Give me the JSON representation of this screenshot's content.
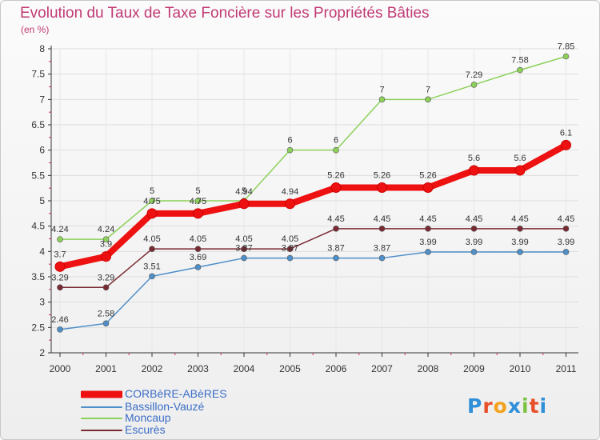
{
  "header": {
    "title": "Evolution du Taux de Taxe Foncière sur les Propriétés Bâties",
    "unit": "(en %)"
  },
  "logo": {
    "text": "Proxiti",
    "letter_colors": [
      "#2f8fd8",
      "#e8502a",
      "#f2a21c",
      "#2f8fd8",
      "#7cc242",
      "#e8502a",
      "#2f8fd8"
    ]
  },
  "chart_data": {
    "type": "line",
    "title": "Evolution du Taux de Taxe Foncière sur les Propriétés Bâties",
    "ylabel": "(en %)",
    "xlabel": "",
    "x": [
      "2000",
      "2001",
      "2002",
      "2003",
      "2004",
      "2005",
      "2006",
      "2007",
      "2008",
      "2009",
      "2010",
      "2011"
    ],
    "ylim": [
      2,
      8
    ],
    "yticks": [
      "2",
      "2.5",
      "3",
      "3.5",
      "4",
      "4.5",
      "5",
      "5.5",
      "6",
      "6.5",
      "7",
      "7.5",
      "8"
    ],
    "legend_position": "bottom-left",
    "series": [
      {
        "name": "CORBèRE-ABèRES",
        "color": "#ee1111",
        "values": [
          3.7,
          3.9,
          4.75,
          4.75,
          4.94,
          4.94,
          5.26,
          5.26,
          5.26,
          5.6,
          5.6,
          6.1
        ],
        "labels": [
          "3.7",
          "3.9",
          "4.75",
          "4.75",
          "4.94",
          "4.94",
          "5.26",
          "5.26",
          "5.26",
          "5.6",
          "5.6",
          "6.1"
        ]
      },
      {
        "name": "Bassillon-Vauzé",
        "color": "#4f8fc9",
        "values": [
          2.46,
          2.58,
          3.51,
          3.69,
          3.87,
          3.87,
          3.87,
          3.87,
          3.99,
          3.99,
          3.99,
          3.99
        ],
        "labels": [
          "2.46",
          "2.58",
          "3.51",
          "3.69",
          "3.87",
          "3.87",
          "3.87",
          "3.87",
          "3.99",
          "3.99",
          "3.99",
          "3.99"
        ]
      },
      {
        "name": "Moncaup",
        "color": "#8cd05a",
        "values": [
          4.24,
          4.24,
          5,
          5,
          5,
          6,
          6,
          7,
          7,
          7.29,
          7.58,
          7.85
        ],
        "labels": [
          "4.24",
          "4.24",
          "5",
          "5",
          "5",
          "6",
          "6",
          "7",
          "7",
          "7.29",
          "7.58",
          "7.85"
        ]
      },
      {
        "name": "Escurès",
        "color": "#7a2a32",
        "values": [
          3.29,
          3.29,
          4.05,
          4.05,
          4.05,
          4.05,
          4.45,
          4.45,
          4.45,
          4.45,
          4.45,
          4.45
        ],
        "labels": [
          "3.29",
          "3.29",
          "4.05",
          "4.05",
          "4.05",
          "4.05",
          "4.45",
          "4.45",
          "4.45",
          "4.45",
          "4.45",
          "4.45"
        ]
      }
    ]
  }
}
